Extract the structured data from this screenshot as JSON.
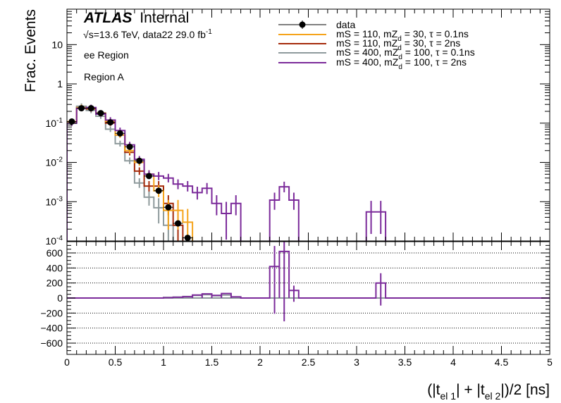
{
  "experiment": "ATLAS",
  "status": "Internal",
  "energy_prefix": "√",
  "energy_text": "s=13.6 TeV, data22 29.0 fb",
  "energy_sup": "-1",
  "region_line1": "ee Region",
  "region_line2": "Region A",
  "upper_ylabel": "Frac. Events",
  "x_axis_label": "(|t_el 1| + |t_el 2|)/2 [ns]",
  "xlabel_parts": {
    "a": "(|t",
    "sub1": "el  1",
    "b": "| + |t",
    "sub2": "el  2",
    "c": "|)/2 [ns]"
  },
  "legend": {
    "data": "data",
    "s1": {
      "a": "mS = 110, mZ",
      "sub": "d",
      "b": " = 30, τ = 0.1ns"
    },
    "s2": {
      "a": "mS = 110, mZ",
      "sub": "d",
      "b": " = 30, τ = 2ns"
    },
    "s3": {
      "a": "mS = 400, mZ",
      "sub": "d",
      "b": " = 100, τ = 0.1ns"
    },
    "s4": {
      "a": "mS = 400, mZ",
      "sub": "d",
      "b": " = 100, τ = 2ns"
    }
  },
  "colors": {
    "data": "#000000",
    "s1": "#f5a31a",
    "s2": "#a52a0a",
    "s3": "#8e9a9c",
    "s4": "#7b2a9a"
  },
  "chart_data": [
    {
      "type": "line",
      "panel": "upper",
      "x_scale": "linear",
      "y_scale": "log",
      "xlim": [
        0,
        5
      ],
      "ylim": [
        0.0001,
        80
      ],
      "ylabel": "Frac. Events",
      "y_tick_labels": [
        "10^-4",
        "10^-3",
        "10^-2",
        "10^-1",
        "1",
        "10"
      ],
      "bin_width": 0.1,
      "x": [
        0.05,
        0.15,
        0.25,
        0.35,
        0.45,
        0.55,
        0.65,
        0.75,
        0.85,
        0.95,
        1.05,
        1.15,
        1.25,
        1.35,
        1.45,
        1.55,
        1.65,
        1.75,
        1.85,
        1.95,
        2.05,
        2.15,
        2.25,
        2.35,
        2.45,
        2.55,
        2.65,
        2.75,
        2.85,
        2.95,
        3.05,
        3.15,
        3.25,
        3.35
      ],
      "series": [
        {
          "name": "data",
          "values": [
            0.11,
            0.24,
            0.24,
            0.18,
            0.105,
            0.055,
            0.025,
            0.011,
            0.0045,
            0.0019,
            0.00072,
            0.00028,
            0.00012,
            null,
            null,
            null,
            null,
            null,
            null,
            null,
            null,
            null,
            null,
            null,
            null,
            null,
            null,
            null,
            null,
            null,
            null,
            null,
            null,
            null
          ]
        },
        {
          "name": "mS = 110, mZd = 30, τ = 0.1ns",
          "values": [
            0.11,
            0.25,
            0.24,
            0.17,
            0.11,
            0.05,
            0.02,
            0.01,
            0.005,
            0.0019,
            0.0006,
            0.0006,
            0.0003,
            5e-05,
            null,
            null,
            null,
            null,
            null,
            null,
            null,
            null,
            null,
            null,
            null,
            null,
            null,
            null,
            null,
            null,
            null,
            null,
            null,
            null
          ]
        },
        {
          "name": "mS = 110, mZd = 30, τ = 2ns",
          "values": [
            0.11,
            0.24,
            0.23,
            0.18,
            0.1,
            0.05,
            0.018,
            0.006,
            0.0025,
            0.0025,
            0.0009,
            0.00025,
            5e-05,
            null,
            null,
            null,
            null,
            null,
            null,
            null,
            null,
            null,
            null,
            null,
            null,
            null,
            null,
            null,
            null,
            null,
            null,
            null,
            null,
            null
          ]
        },
        {
          "name": "mS = 400, mZd = 100, τ = 0.1ns",
          "values": [
            0.1,
            0.27,
            0.21,
            0.15,
            0.07,
            0.03,
            0.011,
            0.003,
            0.0013,
            0.0007,
            0.00025,
            5e-05,
            null,
            null,
            null,
            null,
            null,
            null,
            null,
            null,
            null,
            null,
            null,
            null,
            null,
            null,
            null,
            null,
            null,
            null,
            null,
            null,
            null,
            null
          ]
        },
        {
          "name": "mS = 400, mZd = 100, τ = 2ns",
          "values": [
            0.1,
            0.24,
            0.25,
            0.17,
            0.12,
            0.065,
            0.028,
            0.012,
            0.005,
            0.0045,
            0.004,
            0.0028,
            0.0025,
            0.0017,
            0.0022,
            0.0009,
            0.0005,
            0.0009,
            5e-05,
            null,
            null,
            0.0011,
            0.0024,
            0.0011,
            5e-05,
            null,
            null,
            null,
            null,
            null,
            null,
            0.00055,
            0.00055,
            5e-05
          ]
        }
      ]
    },
    {
      "type": "line",
      "panel": "ratio",
      "x_scale": "linear",
      "y_scale": "linear",
      "xlim": [
        0,
        5
      ],
      "ylim": [
        -750,
        750
      ],
      "xlabel": "(|t_el 1| + |t_el 2|)/2 [ns]",
      "x_ticks": [
        0,
        0.5,
        1,
        1.5,
        2,
        2.5,
        3,
        3.5,
        4,
        4.5,
        5
      ],
      "x_tick_labels": [
        "0",
        "0.5",
        "1",
        "1.5",
        "2",
        "2.5",
        "3",
        "3.5",
        "4",
        "4.5",
        "5"
      ],
      "y_ticks": [
        -600,
        -400,
        -200,
        0,
        200,
        400,
        600
      ],
      "y_tick_labels": [
        "−600",
        "−400",
        "−200",
        "0",
        "200",
        "400",
        "600"
      ],
      "grid": "horizontal dotted",
      "x": [
        1.05,
        1.15,
        1.25,
        1.35,
        1.45,
        1.55,
        1.65,
        1.75,
        2.15,
        2.25,
        2.35,
        3.25
      ],
      "series": [
        {
          "name": "mS = 400, mZd = 100, τ = 0.1ns",
          "values": [
            8,
            12,
            20,
            35,
            45,
            30,
            40,
            15,
            0,
            0,
            0,
            0
          ]
        },
        {
          "name": "mS = 400, mZd = 100, τ = 2ns",
          "values": [
            5,
            10,
            18,
            40,
            55,
            35,
            60,
            15,
            420,
            620,
            100,
            200
          ]
        }
      ]
    }
  ]
}
